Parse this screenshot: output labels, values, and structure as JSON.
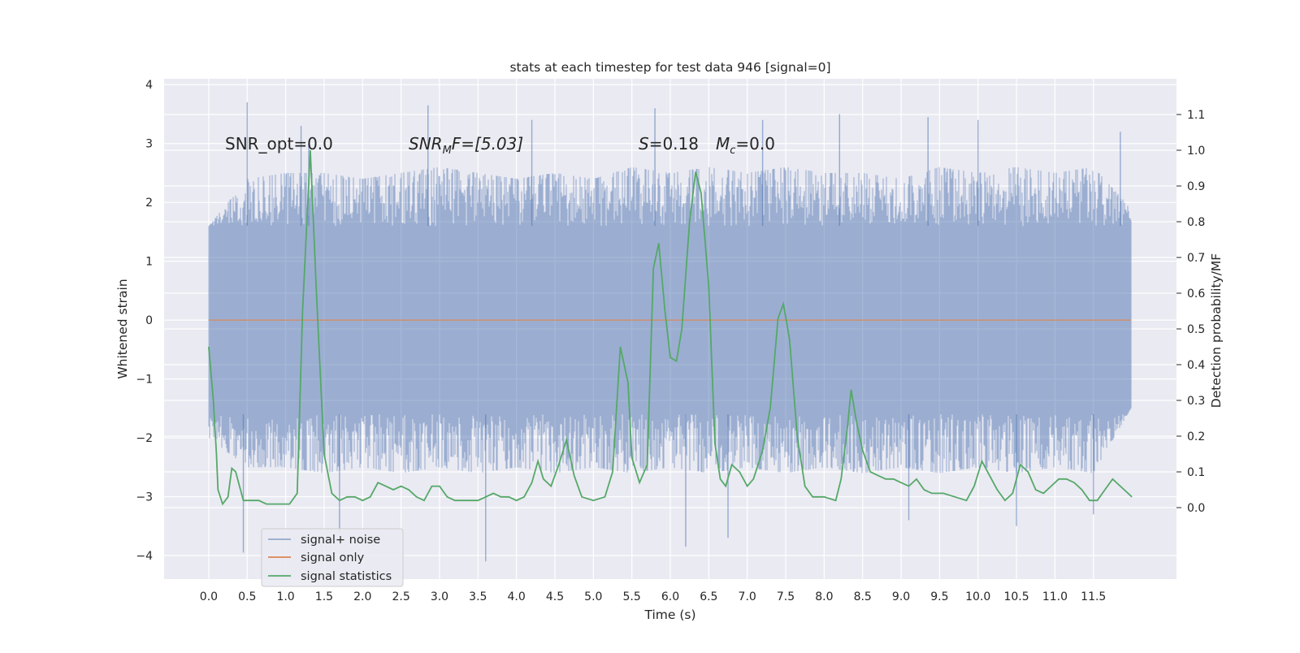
{
  "chart_data": {
    "type": "line",
    "title": "stats at each timestep for test data 946 [signal=0]",
    "xlabel": "Time (s)",
    "ylabel": "Whitened strain",
    "ylabel_right": "Detection probability/MF",
    "xlim": [
      -0.58,
      12.58
    ],
    "ylim": [
      -4.4,
      4.1
    ],
    "ylim_right": [
      -0.2,
      1.2
    ],
    "x_ticks": [
      "0.0",
      "0.5",
      "1.0",
      "1.5",
      "2.0",
      "2.5",
      "3.0",
      "3.5",
      "4.0",
      "4.5",
      "5.0",
      "5.5",
      "6.0",
      "6.5",
      "7.0",
      "7.5",
      "8.0",
      "8.5",
      "9.0",
      "9.5",
      "10.0",
      "10.5",
      "11.0",
      "11.5"
    ],
    "y_ticks": [
      4,
      3,
      2,
      1,
      0,
      -1,
      -2,
      -3,
      -4
    ],
    "y_tick_labels": [
      "4",
      "3",
      "2",
      "1",
      "0",
      "−1",
      "−2",
      "−3",
      "−4"
    ],
    "y_right_ticks": [
      1.1,
      1.0,
      0.9,
      0.8,
      0.7,
      0.6,
      0.5,
      0.4,
      0.3,
      0.2,
      0.1,
      0.0
    ],
    "y_right_tick_labels": [
      "1.1",
      "1.0",
      "0.9",
      "0.8",
      "0.7",
      "0.6",
      "0.5",
      "0.4",
      "0.3",
      "0.2",
      "0.1",
      "0.0"
    ],
    "grid": true,
    "legend_position": "lower-left",
    "annotations": {
      "snr_opt": "SNR_opt=0.0",
      "snr_mf_main": "SNR",
      "snr_mf_sub": "M",
      "snr_mf_tail": "F=[5.03]",
      "stat_main": "S",
      "stat_tail": "=0.18",
      "mc_main": "M",
      "mc_sub": "c",
      "mc_tail": "=0.0"
    },
    "series": [
      {
        "name": "signal+ noise",
        "color": "#4c72b0",
        "axis": "left",
        "x_range": [
          0.0,
          11.99
        ],
        "typical_amplitude": 1.6,
        "envelope": {
          "upper": [
            [
              0.0,
              1.6
            ],
            [
              0.5,
              2.4
            ],
            [
              1.0,
              2.5
            ],
            [
              1.5,
              2.5
            ],
            [
              2.0,
              2.4
            ],
            [
              2.5,
              2.5
            ],
            [
              3.0,
              2.6
            ],
            [
              3.5,
              2.5
            ],
            [
              4.0,
              2.4
            ],
            [
              4.5,
              2.5
            ],
            [
              5.0,
              2.4
            ],
            [
              5.5,
              2.6
            ],
            [
              6.0,
              2.5
            ],
            [
              6.5,
              2.6
            ],
            [
              7.0,
              2.5
            ],
            [
              7.5,
              2.6
            ],
            [
              8.0,
              2.5
            ],
            [
              8.5,
              2.5
            ],
            [
              9.0,
              2.4
            ],
            [
              9.5,
              2.6
            ],
            [
              10.0,
              2.5
            ],
            [
              10.5,
              2.6
            ],
            [
              11.0,
              2.5
            ],
            [
              11.5,
              2.6
            ],
            [
              11.99,
              1.9
            ]
          ],
          "lower": [
            [
              0.0,
              -2.0
            ],
            [
              0.5,
              -2.5
            ],
            [
              1.0,
              -2.5
            ],
            [
              1.5,
              -2.6
            ],
            [
              2.0,
              -2.5
            ],
            [
              2.5,
              -2.6
            ],
            [
              3.0,
              -2.5
            ],
            [
              3.5,
              -2.6
            ],
            [
              4.0,
              -2.5
            ],
            [
              4.5,
              -2.6
            ],
            [
              5.0,
              -2.5
            ],
            [
              5.5,
              -2.6
            ],
            [
              6.0,
              -2.5
            ],
            [
              6.5,
              -2.6
            ],
            [
              7.0,
              -2.5
            ],
            [
              7.5,
              -2.6
            ],
            [
              8.0,
              -2.5
            ],
            [
              8.5,
              -2.6
            ],
            [
              9.0,
              -2.5
            ],
            [
              9.5,
              -2.6
            ],
            [
              10.0,
              -2.5
            ],
            [
              10.5,
              -2.6
            ],
            [
              11.0,
              -2.5
            ],
            [
              11.5,
              -2.6
            ],
            [
              11.99,
              -1.5
            ]
          ]
        },
        "peaks": [
          {
            "x": 0.5,
            "y": 3.7
          },
          {
            "x": 1.2,
            "y": 3.3
          },
          {
            "x": 1.3,
            "y": 3.0
          },
          {
            "x": 2.85,
            "y": 3.65
          },
          {
            "x": 4.2,
            "y": 3.4
          },
          {
            "x": 5.8,
            "y": 3.6
          },
          {
            "x": 7.2,
            "y": 3.4
          },
          {
            "x": 8.2,
            "y": 3.5
          },
          {
            "x": 9.35,
            "y": 3.45
          },
          {
            "x": 10.0,
            "y": 3.4
          },
          {
            "x": 11.85,
            "y": 3.2
          },
          {
            "x": 0.45,
            "y": -3.95
          },
          {
            "x": 1.7,
            "y": -3.6
          },
          {
            "x": 3.6,
            "y": -4.1
          },
          {
            "x": 6.2,
            "y": -3.85
          },
          {
            "x": 6.75,
            "y": -3.7
          },
          {
            "x": 9.1,
            "y": -3.4
          },
          {
            "x": 10.5,
            "y": -3.5
          },
          {
            "x": 11.5,
            "y": -3.3
          }
        ]
      },
      {
        "name": "signal only",
        "color": "#dd8452",
        "axis": "left",
        "x": [
          0.0,
          11.99
        ],
        "y": [
          0.0,
          0.0
        ]
      },
      {
        "name": "signal statistics",
        "color": "#55a868",
        "axis": "right",
        "points": [
          [
            0.0,
            0.45
          ],
          [
            0.06,
            0.3
          ],
          [
            0.1,
            0.15
          ],
          [
            0.12,
            0.05
          ],
          [
            0.18,
            0.01
          ],
          [
            0.25,
            0.03
          ],
          [
            0.3,
            0.11
          ],
          [
            0.35,
            0.1
          ],
          [
            0.45,
            0.02
          ],
          [
            0.55,
            0.02
          ],
          [
            0.65,
            0.02
          ],
          [
            0.75,
            0.01
          ],
          [
            0.85,
            0.01
          ],
          [
            0.95,
            0.01
          ],
          [
            1.05,
            0.01
          ],
          [
            1.15,
            0.04
          ],
          [
            1.22,
            0.55
          ],
          [
            1.32,
            1.0
          ],
          [
            1.4,
            0.6
          ],
          [
            1.5,
            0.15
          ],
          [
            1.6,
            0.04
          ],
          [
            1.7,
            0.02
          ],
          [
            1.8,
            0.03
          ],
          [
            1.9,
            0.03
          ],
          [
            2.0,
            0.02
          ],
          [
            2.1,
            0.03
          ],
          [
            2.2,
            0.07
          ],
          [
            2.3,
            0.06
          ],
          [
            2.4,
            0.05
          ],
          [
            2.5,
            0.06
          ],
          [
            2.6,
            0.05
          ],
          [
            2.7,
            0.03
          ],
          [
            2.8,
            0.02
          ],
          [
            2.9,
            0.06
          ],
          [
            3.0,
            0.06
          ],
          [
            3.1,
            0.03
          ],
          [
            3.2,
            0.02
          ],
          [
            3.35,
            0.02
          ],
          [
            3.5,
            0.02
          ],
          [
            3.6,
            0.03
          ],
          [
            3.7,
            0.04
          ],
          [
            3.8,
            0.03
          ],
          [
            3.9,
            0.03
          ],
          [
            4.0,
            0.02
          ],
          [
            4.1,
            0.03
          ],
          [
            4.2,
            0.07
          ],
          [
            4.28,
            0.13
          ],
          [
            4.35,
            0.08
          ],
          [
            4.45,
            0.06
          ],
          [
            4.55,
            0.12
          ],
          [
            4.65,
            0.19
          ],
          [
            4.75,
            0.09
          ],
          [
            4.85,
            0.03
          ],
          [
            5.0,
            0.02
          ],
          [
            5.15,
            0.03
          ],
          [
            5.25,
            0.1
          ],
          [
            5.35,
            0.45
          ],
          [
            5.45,
            0.35
          ],
          [
            5.5,
            0.14
          ],
          [
            5.6,
            0.07
          ],
          [
            5.7,
            0.12
          ],
          [
            5.78,
            0.67
          ],
          [
            5.85,
            0.74
          ],
          [
            5.93,
            0.55
          ],
          [
            6.0,
            0.42
          ],
          [
            6.08,
            0.41
          ],
          [
            6.15,
            0.5
          ],
          [
            6.25,
            0.8
          ],
          [
            6.33,
            0.94
          ],
          [
            6.4,
            0.88
          ],
          [
            6.5,
            0.62
          ],
          [
            6.58,
            0.18
          ],
          [
            6.65,
            0.08
          ],
          [
            6.72,
            0.06
          ],
          [
            6.8,
            0.12
          ],
          [
            6.9,
            0.1
          ],
          [
            7.0,
            0.06
          ],
          [
            7.08,
            0.08
          ],
          [
            7.2,
            0.16
          ],
          [
            7.3,
            0.28
          ],
          [
            7.4,
            0.53
          ],
          [
            7.47,
            0.57
          ],
          [
            7.55,
            0.47
          ],
          [
            7.65,
            0.2
          ],
          [
            7.75,
            0.06
          ],
          [
            7.85,
            0.03
          ],
          [
            8.0,
            0.03
          ],
          [
            8.15,
            0.02
          ],
          [
            8.22,
            0.08
          ],
          [
            8.3,
            0.22
          ],
          [
            8.35,
            0.33
          ],
          [
            8.42,
            0.24
          ],
          [
            8.5,
            0.16
          ],
          [
            8.6,
            0.1
          ],
          [
            8.7,
            0.09
          ],
          [
            8.8,
            0.08
          ],
          [
            8.9,
            0.08
          ],
          [
            9.0,
            0.07
          ],
          [
            9.1,
            0.06
          ],
          [
            9.2,
            0.08
          ],
          [
            9.3,
            0.05
          ],
          [
            9.4,
            0.04
          ],
          [
            9.55,
            0.04
          ],
          [
            9.7,
            0.03
          ],
          [
            9.85,
            0.02
          ],
          [
            9.95,
            0.06
          ],
          [
            10.05,
            0.13
          ],
          [
            10.15,
            0.09
          ],
          [
            10.25,
            0.05
          ],
          [
            10.35,
            0.02
          ],
          [
            10.45,
            0.04
          ],
          [
            10.55,
            0.12
          ],
          [
            10.65,
            0.1
          ],
          [
            10.75,
            0.05
          ],
          [
            10.85,
            0.04
          ],
          [
            10.95,
            0.06
          ],
          [
            11.05,
            0.08
          ],
          [
            11.15,
            0.08
          ],
          [
            11.25,
            0.07
          ],
          [
            11.35,
            0.05
          ],
          [
            11.45,
            0.02
          ],
          [
            11.55,
            0.02
          ],
          [
            11.65,
            0.05
          ],
          [
            11.75,
            0.08
          ],
          [
            11.85,
            0.06
          ],
          [
            11.95,
            0.04
          ],
          [
            12.0,
            0.03
          ]
        ]
      }
    ]
  }
}
